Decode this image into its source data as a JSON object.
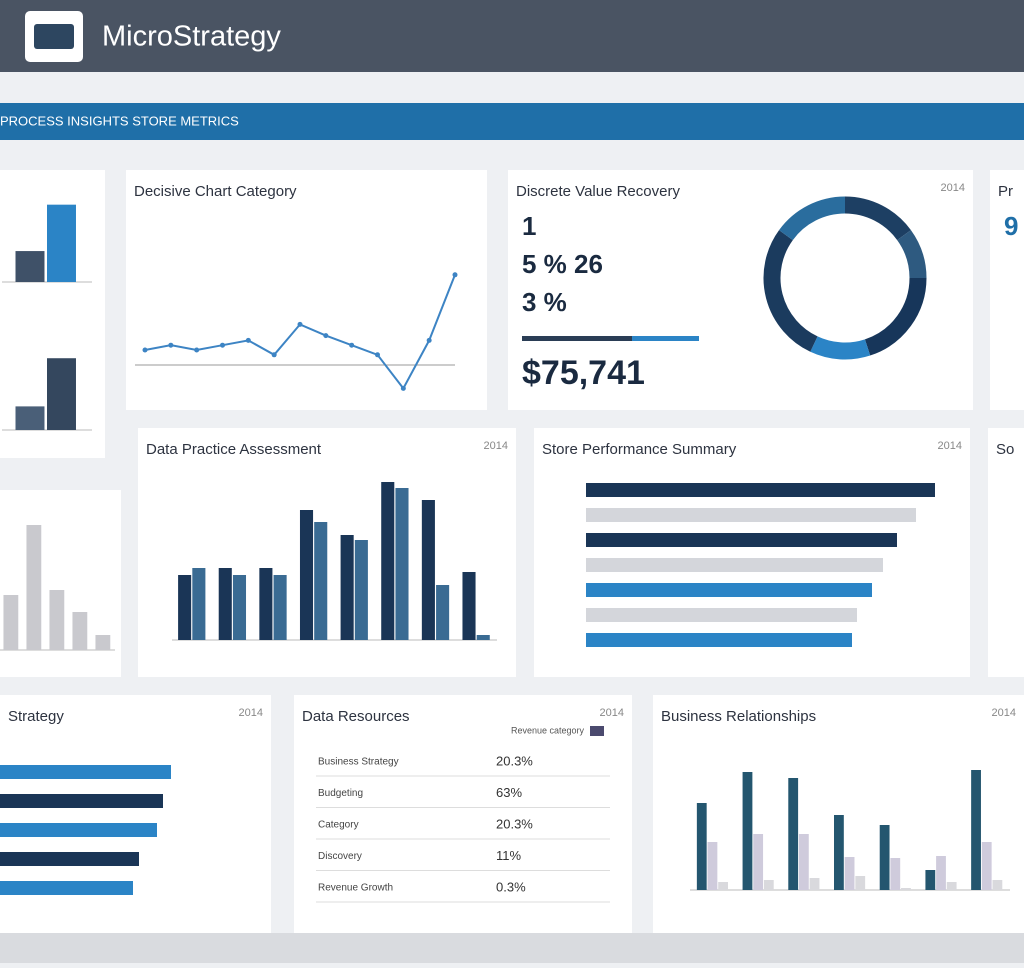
{
  "header": {
    "brand": "MicroStrategy"
  },
  "banner": {
    "title": "PROCESS INSIGHTS STORE METRICS"
  },
  "panels": [
    {
      "type": "bar",
      "ylim": [
        0,
        90
      ],
      "series": [
        {
          "color": "#3f5168",
          "values": [
            32
          ]
        },
        {
          "color": "#2b84c6",
          "values": [
            80
          ]
        }
      ]
    },
    {
      "type": "bar",
      "ylim": [
        0,
        90
      ],
      "series": [
        {
          "color": "#4a5f78",
          "values": [
            25
          ]
        },
        {
          "color": "#34475e",
          "values": [
            76
          ]
        }
      ]
    },
    {
      "type": "line",
      "title": "Decisive Chart Category",
      "ylim": [
        0,
        100
      ],
      "series": [
        {
          "color": "#3d84c4",
          "values": [
            25,
            28,
            25,
            28,
            31,
            22,
            41,
            34,
            28,
            22,
            1,
            31,
            72
          ]
        }
      ]
    },
    {
      "type": "kpi",
      "title": "Discrete Value Recovery",
      "tag": "2014",
      "kpis": [
        "1",
        "5 % 26",
        "3 %"
      ],
      "big": "$75,741",
      "progress": [
        {
          "color": "#2a3d55",
          "value": 110
        },
        {
          "color": "#2b84c6",
          "value": 67
        }
      ],
      "donut": [
        {
          "color": "#1d3f63",
          "value": 15
        },
        {
          "color": "#2e5a80",
          "value": 10
        },
        {
          "color": "#17365a",
          "value": 20
        },
        {
          "color": "#2b84c6",
          "value": 12
        },
        {
          "color": "#1b3b5e",
          "value": 28
        },
        {
          "color": "#2a6d9e",
          "value": 15
        }
      ]
    },
    {
      "type": "kpi",
      "title": "Pr",
      "kpis": [
        "9"
      ]
    },
    {
      "type": "bar",
      "ylim": [
        0,
        130
      ],
      "series": [
        {
          "color": "#c9c9ce",
          "values": [
            55,
            125,
            60,
            38,
            15
          ]
        }
      ]
    },
    {
      "type": "bar",
      "title": "Data Practice Assessment",
      "tag": "2014",
      "ylim": [
        0,
        160
      ],
      "series": [
        {
          "color": "#1a3556",
          "values": [
            65,
            72,
            72,
            130,
            105,
            158,
            140,
            68
          ]
        },
        {
          "color": "#3a6b93",
          "values": [
            72,
            65,
            65,
            118,
            100,
            152,
            55,
            5
          ]
        }
      ]
    },
    {
      "type": "hbar",
      "title": "Store Performance Summary",
      "tag": "2014",
      "xlim": [
        0,
        360
      ],
      "series": [
        {
          "colors": [
            "#1a3556",
            "#d4d6db",
            "#1a3556",
            "#d4d6db",
            "#2b84c6",
            "#d4d6db",
            "#2b84c6"
          ],
          "values": [
            349,
            330,
            311,
            297,
            286,
            271,
            266
          ]
        }
      ]
    },
    {
      "type": "kpi",
      "title": "So",
      "kpis": []
    },
    {
      "type": "hbar",
      "title": "Strategy",
      "tag": "2014",
      "xlim": [
        0,
        200
      ],
      "series": [
        {
          "colors": [
            "#2b84c6",
            "#1a3556",
            "#2b84c6",
            "#1a3556",
            "#2b84c6"
          ],
          "values": [
            171,
            163,
            157,
            139,
            133
          ]
        }
      ]
    },
    {
      "type": "table",
      "title": "Data Resources",
      "tag": "2014",
      "header": "Revenue category",
      "rows": [
        [
          "Business Strategy",
          "20.3%"
        ],
        [
          "Budgeting",
          "63%"
        ],
        [
          "Category",
          "20.3%"
        ],
        [
          "Discovery",
          "11%"
        ],
        [
          "Revenue Growth",
          "0.3%"
        ]
      ]
    },
    {
      "type": "bar",
      "title": "Business Relationships",
      "tag": "2014",
      "ylim": [
        0,
        150
      ],
      "series": [
        {
          "color": "#24566f",
          "values": [
            87,
            118,
            112,
            75,
            65,
            20,
            120
          ]
        },
        {
          "color": "#cfcbdc",
          "values": [
            48,
            56,
            56,
            33,
            32,
            34,
            48
          ]
        },
        {
          "color": "#d9d9dd",
          "values": [
            8,
            10,
            12,
            14,
            2,
            8,
            10
          ]
        }
      ]
    }
  ]
}
